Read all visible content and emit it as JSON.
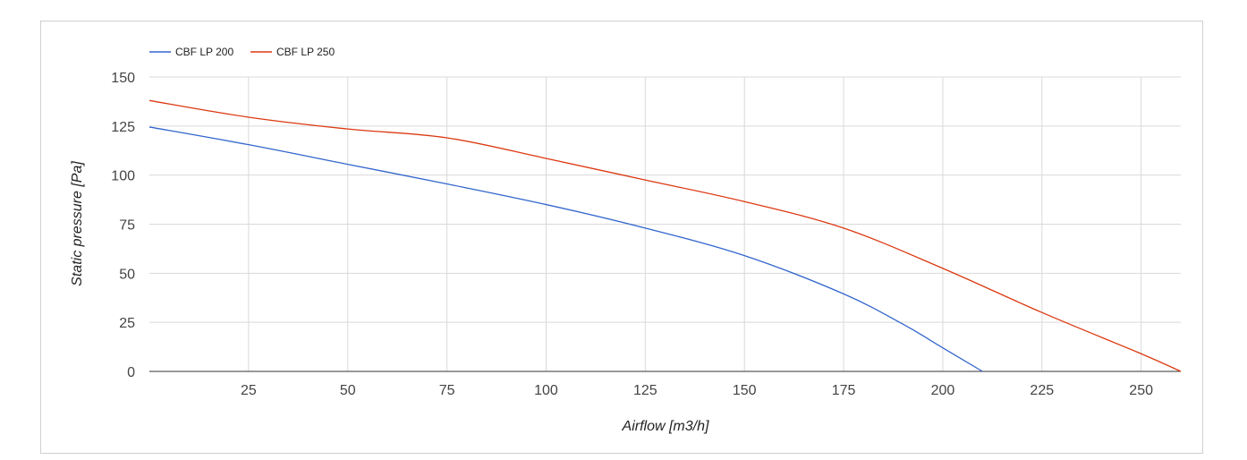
{
  "chart_data": {
    "type": "line",
    "title": "",
    "xlabel": "Airflow [m3/h]",
    "ylabel": "Static pressure [Pa]",
    "xlim": [
      0,
      260
    ],
    "ylim": [
      0,
      150
    ],
    "x_ticks": [
      25,
      50,
      75,
      100,
      125,
      150,
      175,
      200,
      225,
      250
    ],
    "y_ticks": [
      0,
      25,
      50,
      75,
      100,
      125,
      150
    ],
    "grid": true,
    "legend_position": "top-left",
    "series": [
      {
        "name": "CBF LP 200",
        "color": "#3366cc",
        "points": [
          [
            0,
            124.5
          ],
          [
            25,
            115.5
          ],
          [
            50,
            105.5
          ],
          [
            75,
            95.5
          ],
          [
            100,
            85
          ],
          [
            125,
            73
          ],
          [
            150,
            59
          ],
          [
            175,
            39.5
          ],
          [
            190,
            24
          ],
          [
            200,
            12
          ],
          [
            210,
            0
          ]
        ]
      },
      {
        "name": "CBF LP 250",
        "color": "#dc3912",
        "points": [
          [
            0,
            138
          ],
          [
            25,
            129.5
          ],
          [
            50,
            123.5
          ],
          [
            75,
            119
          ],
          [
            100,
            108.5
          ],
          [
            125,
            97.5
          ],
          [
            150,
            86.5
          ],
          [
            175,
            73
          ],
          [
            200,
            52.5
          ],
          [
            225,
            30
          ],
          [
            250,
            9
          ],
          [
            260,
            0
          ]
        ]
      }
    ]
  }
}
